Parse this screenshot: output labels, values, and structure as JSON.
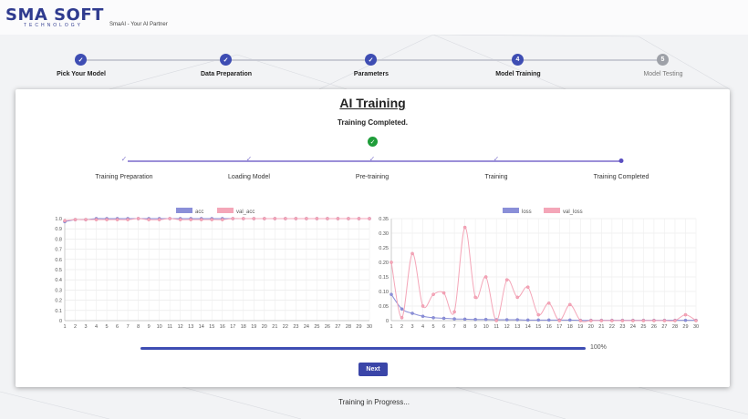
{
  "brand": {
    "logo_main": "SMA SOFT",
    "logo_sub": "TECHNOLOGY",
    "tagline": "SmaAI - Your AI Partner"
  },
  "wizard": {
    "steps": [
      {
        "label": "Pick Your Model",
        "state": "done",
        "marker": "✓"
      },
      {
        "label": "Data Preparation",
        "state": "done",
        "marker": "✓"
      },
      {
        "label": "Parameters",
        "state": "done",
        "marker": "✓"
      },
      {
        "label": "Model Training",
        "state": "active",
        "marker": "4"
      },
      {
        "label": "Model Testing",
        "state": "pending",
        "marker": "5"
      }
    ]
  },
  "card": {
    "title": "AI Training",
    "status": "Training Completed.",
    "stages": [
      "Training Preparation",
      "Loading Model",
      "Pre-training",
      "Training",
      "Training Completed"
    ]
  },
  "progress": {
    "value": 100,
    "label": "100%"
  },
  "next_label": "Next",
  "footer_status": "Training in Progress...",
  "colors": {
    "primary": "#3e4db3",
    "series_a": "#8a8fd8",
    "series_b": "#f4a6b8",
    "success": "#1f9d3a"
  },
  "chart_data": [
    {
      "type": "line",
      "x": [
        1,
        2,
        3,
        4,
        5,
        6,
        7,
        8,
        9,
        10,
        11,
        12,
        13,
        14,
        15,
        16,
        17,
        18,
        19,
        20,
        21,
        22,
        23,
        24,
        25,
        26,
        27,
        28,
        29,
        30
      ],
      "series": [
        {
          "name": "acc",
          "values": [
            0.97,
            0.99,
            0.99,
            1.0,
            1.0,
            1.0,
            1.0,
            1.0,
            1.0,
            1.0,
            1.0,
            1.0,
            1.0,
            1.0,
            1.0,
            1.0,
            1.0,
            1.0,
            1.0,
            1.0,
            1.0,
            1.0,
            1.0,
            1.0,
            1.0,
            1.0,
            1.0,
            1.0,
            1.0,
            1.0
          ]
        },
        {
          "name": "val_acc",
          "values": [
            0.98,
            0.99,
            0.99,
            0.99,
            0.99,
            0.99,
            0.99,
            1.0,
            0.99,
            0.99,
            1.0,
            0.99,
            0.99,
            0.99,
            0.99,
            0.99,
            1.0,
            1.0,
            1.0,
            1.0,
            1.0,
            1.0,
            1.0,
            1.0,
            1.0,
            1.0,
            1.0,
            1.0,
            1.0,
            1.0
          ]
        }
      ],
      "ylim": [
        0,
        1.0
      ],
      "yticks": [
        "0",
        "0.1",
        "0.2",
        "0.3",
        "0.4",
        "0.5",
        "0.6",
        "0.7",
        "0.8",
        "0.9",
        "1.0"
      ],
      "legend": "top-center",
      "grid": true
    },
    {
      "type": "line",
      "x": [
        1,
        2,
        3,
        4,
        5,
        6,
        7,
        8,
        9,
        10,
        11,
        12,
        13,
        14,
        15,
        16,
        17,
        18,
        19,
        20,
        21,
        22,
        23,
        24,
        25,
        26,
        27,
        28,
        29,
        30
      ],
      "series": [
        {
          "name": "loss",
          "values": [
            0.09,
            0.04,
            0.025,
            0.015,
            0.01,
            0.008,
            0.006,
            0.005,
            0.004,
            0.004,
            0.003,
            0.003,
            0.003,
            0.002,
            0.002,
            0.002,
            0.002,
            0.002,
            0.001,
            0.001,
            0.001,
            0.001,
            0.001,
            0.001,
            0.001,
            0.001,
            0.001,
            0.001,
            0.001,
            0.001
          ]
        },
        {
          "name": "val_loss",
          "values": [
            0.2,
            0.01,
            0.23,
            0.05,
            0.09,
            0.095,
            0.03,
            0.32,
            0.08,
            0.15,
            0.0,
            0.14,
            0.08,
            0.115,
            0.02,
            0.06,
            0.0,
            0.055,
            0.0,
            0.0,
            0.0,
            0.0,
            0.0,
            0.0,
            0.0,
            0.0,
            0.0,
            0.0,
            0.02,
            0.0
          ]
        }
      ],
      "ylim": [
        0,
        0.35
      ],
      "yticks": [
        "0",
        "0.05",
        "0.10",
        "0.15",
        "0.20",
        "0.25",
        "0.30",
        "0.35"
      ],
      "legend": "top-center",
      "grid": true
    }
  ]
}
